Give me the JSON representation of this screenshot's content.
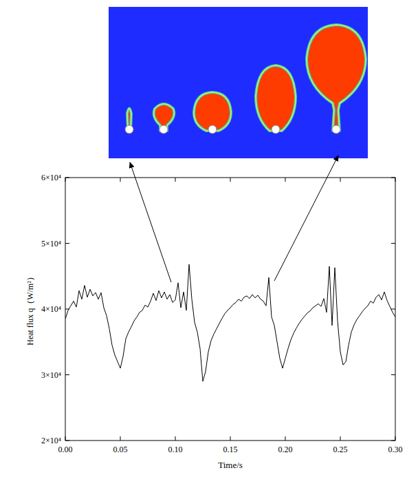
{
  "chart_data": {
    "type": "line",
    "xlabel": "Time/s",
    "ylabel": "Heat flux q（W/m²）",
    "color": "#000000",
    "xlim": [
      0,
      0.3
    ],
    "ylim": [
      20000,
      60000
    ],
    "xticks": [
      {
        "value": 0,
        "label": "0.00"
      },
      {
        "value": 0.05,
        "label": "0.05"
      },
      {
        "value": 0.1,
        "label": "0.10"
      },
      {
        "value": 0.15,
        "label": "0.15"
      },
      {
        "value": 0.2,
        "label": "0.20"
      },
      {
        "value": 0.25,
        "label": "0.25"
      },
      {
        "value": 0.3,
        "label": "0.30"
      }
    ],
    "yticks": [
      {
        "value": 20000,
        "label": "2×10⁴"
      },
      {
        "value": 30000,
        "label": "3×10⁴"
      },
      {
        "value": 40000,
        "label": "4×10⁴"
      },
      {
        "value": 50000,
        "label": "5×10⁴"
      },
      {
        "value": 60000,
        "label": "6×10⁴"
      }
    ],
    "x": [
      0,
      0.0025,
      0.005,
      0.0075,
      0.01,
      0.0125,
      0.015,
      0.0175,
      0.02,
      0.0225,
      0.025,
      0.0275,
      0.03,
      0.0325,
      0.035,
      0.0375,
      0.04,
      0.0425,
      0.045,
      0.0475,
      0.05,
      0.0525,
      0.055,
      0.0575,
      0.06,
      0.0625,
      0.065,
      0.0675,
      0.07,
      0.0725,
      0.075,
      0.0775,
      0.08,
      0.0825,
      0.085,
      0.0875,
      0.09,
      0.0925,
      0.095,
      0.0975,
      0.1,
      0.1025,
      0.105,
      0.1075,
      0.11,
      0.1125,
      0.115,
      0.1175,
      0.12,
      0.1225,
      0.125,
      0.1275,
      0.13,
      0.1325,
      0.135,
      0.1375,
      0.14,
      0.1425,
      0.145,
      0.1475,
      0.15,
      0.1525,
      0.155,
      0.1575,
      0.16,
      0.1625,
      0.165,
      0.1675,
      0.17,
      0.1725,
      0.175,
      0.1775,
      0.18,
      0.1825,
      0.185,
      0.1875,
      0.19,
      0.1925,
      0.195,
      0.1975,
      0.2,
      0.2025,
      0.205,
      0.2075,
      0.21,
      0.2125,
      0.215,
      0.2175,
      0.22,
      0.2225,
      0.225,
      0.2275,
      0.23,
      0.2325,
      0.235,
      0.2375,
      0.24,
      0.2425,
      0.245,
      0.2475,
      0.25,
      0.2525,
      0.255,
      0.2575,
      0.26,
      0.2625,
      0.265,
      0.2675,
      0.27,
      0.2725,
      0.275,
      0.2775,
      0.28,
      0.2825,
      0.285,
      0.2875,
      0.29,
      0.2925,
      0.295,
      0.2975,
      0.3
    ],
    "values": [
      38500,
      39800,
      40500,
      41200,
      40300,
      42800,
      41500,
      43600,
      41800,
      43000,
      42000,
      42500,
      41500,
      42500,
      40200,
      39000,
      37000,
      34500,
      33000,
      32000,
      31000,
      32800,
      35500,
      36500,
      37300,
      38200,
      38800,
      39500,
      39800,
      40600,
      40300,
      41200,
      42400,
      41300,
      42800,
      41700,
      42600,
      41500,
      42200,
      41000,
      41400,
      44000,
      40200,
      42600,
      39800,
      46800,
      41500,
      38000,
      36500,
      34000,
      29000,
      30500,
      33500,
      35200,
      36200,
      37000,
      37800,
      38600,
      39300,
      39800,
      40200,
      40700,
      41000,
      41500,
      41200,
      41800,
      42000,
      41600,
      42200,
      41700,
      42100,
      41500,
      41200,
      40500,
      44800,
      38800,
      37500,
      35000,
      32500,
      31000,
      32500,
      34000,
      35300,
      36300,
      37100,
      37800,
      38400,
      38900,
      39400,
      39700,
      40200,
      40500,
      40800,
      40400,
      41600,
      39500,
      46500,
      37500,
      46300,
      38200,
      33500,
      31500,
      32000,
      34500,
      36500,
      37600,
      38400,
      39000,
      39600,
      40100,
      40500,
      41200,
      40900,
      41800,
      42200,
      41400,
      42600,
      41300,
      40400,
      39500,
      38800
    ]
  }
}
